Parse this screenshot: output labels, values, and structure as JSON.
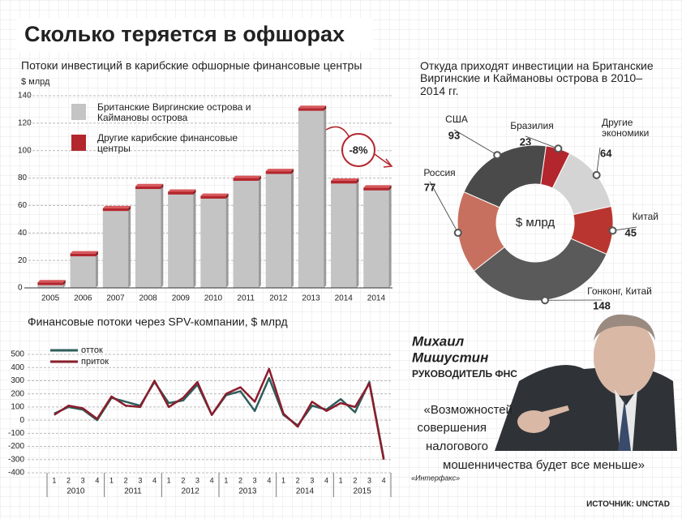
{
  "title": "Сколько теряется в офшорах",
  "person": {
    "name": [
      "Михаил",
      "Мишустин"
    ],
    "role": "РУКОВОДИТЕЛЬ ФНС"
  },
  "quote": [
    "«Возможностей",
    "совершения",
    "налогового",
    "мошенничества будет все меньше»"
  ],
  "quote_source": "«Интерфакс»",
  "source": "ИСТОЧНИК: UNCTAD",
  "chart_data": [
    {
      "type": "bar",
      "title": "Потоки инвестиций в карибские офшорные финансовые центры",
      "y_label": "$ млрд",
      "categories": [
        "2005",
        "2006",
        "2007",
        "2008",
        "2009",
        "2010",
        "2011",
        "2012",
        "2013",
        "2014",
        "2014"
      ],
      "series": [
        {
          "name": "Британские Виргинские острова и Каймановы острова",
          "color": "#c4c4c4",
          "values": [
            2,
            23,
            56,
            72,
            68,
            65,
            78,
            83,
            129,
            76,
            71
          ]
        },
        {
          "name": "Другие карибские финансовые центры",
          "color": "#b3262d",
          "values": [
            2,
            2,
            2,
            2,
            2,
            2,
            2,
            2,
            2,
            2,
            2
          ]
        }
      ],
      "ylim": [
        0,
        140
      ],
      "yticks": [
        0,
        20,
        40,
        60,
        80,
        100,
        120,
        140
      ],
      "stacked": true,
      "annotation": "-8%"
    },
    {
      "type": "pie",
      "title": "Откуда приходят инвестиции на Британские Виргинские и Каймановы острова в 2010–2014 гг.",
      "center_label": "$ млрд",
      "categories": [
        "Бразилия",
        "Другие экономики",
        "Китай",
        "Гонконг, Китай",
        "Россия",
        "США"
      ],
      "values": [
        23,
        64,
        45,
        148,
        77,
        93
      ],
      "colors": [
        "#b3262d",
        "#d4d4d4",
        "#b8362f",
        "#5a5a5a",
        "#c8705f",
        "#4a4a4a"
      ],
      "donut": true
    },
    {
      "type": "line",
      "title": "Финансовые потоки через SPV-компании, $ млрд",
      "categories": [
        "1",
        "2",
        "3",
        "4",
        "1",
        "2",
        "3",
        "4",
        "1",
        "2",
        "3",
        "4",
        "1",
        "2",
        "3",
        "4",
        "1",
        "2",
        "3",
        "4",
        "1",
        "2",
        "3",
        "4"
      ],
      "groups": [
        "2010",
        "2011",
        "2012",
        "2013",
        "2014",
        "2015"
      ],
      "series": [
        {
          "name": "отток",
          "color": "#2d5e5c",
          "values": [
            50,
            100,
            80,
            0,
            170,
            140,
            110,
            290,
            130,
            150,
            270,
            40,
            190,
            220,
            70,
            320,
            40,
            -40,
            110,
            80,
            160,
            60,
            290,
            -290
          ]
        },
        {
          "name": "приток",
          "color": "#8c1d2c",
          "values": [
            40,
            110,
            90,
            10,
            180,
            110,
            100,
            300,
            100,
            170,
            290,
            40,
            200,
            250,
            140,
            390,
            50,
            -50,
            140,
            70,
            130,
            100,
            280,
            -300
          ]
        }
      ],
      "ylim": [
        -400,
        500
      ],
      "yticks": [
        -400,
        -300,
        -200,
        -100,
        0,
        100,
        200,
        300,
        400,
        500
      ],
      "grid": true
    }
  ]
}
